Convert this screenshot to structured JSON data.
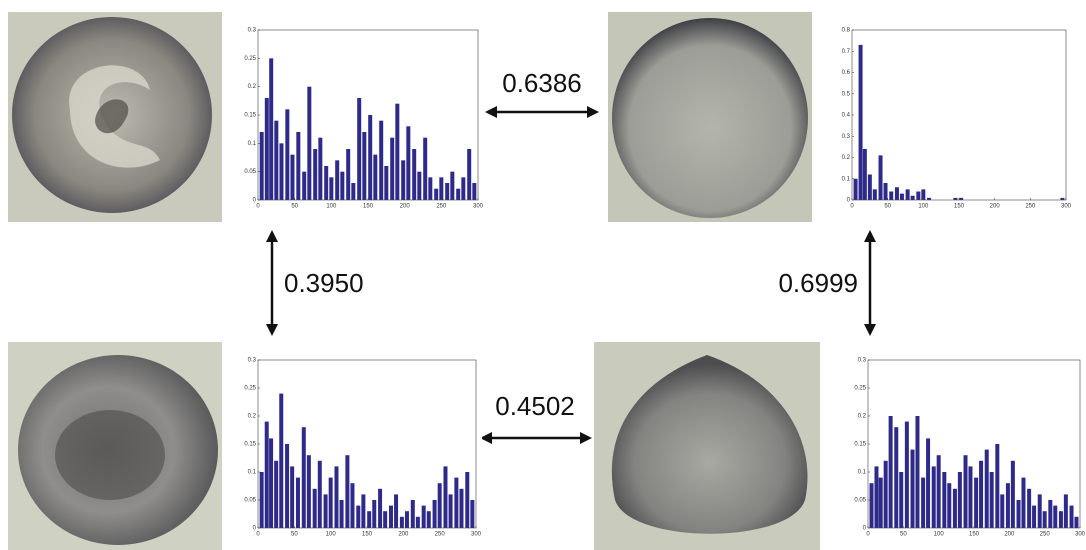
{
  "links": [
    "0.6386",
    "0.3950",
    "0.4502",
    "0.6999"
  ],
  "chart_data": [
    {
      "type": "bar",
      "color": "#2e2a8a",
      "x": [
        5,
        12,
        18,
        25,
        32,
        40,
        47,
        55,
        63,
        70,
        78,
        85,
        93,
        100,
        108,
        115,
        123,
        130,
        138,
        145,
        153,
        160,
        168,
        175,
        183,
        190,
        198,
        205,
        213,
        220,
        228,
        235,
        243,
        250,
        258,
        265,
        273,
        280,
        288,
        295
      ],
      "values": [
        0.12,
        0.18,
        0.25,
        0.14,
        0.1,
        0.16,
        0.08,
        0.12,
        0.05,
        0.2,
        0.09,
        0.11,
        0.06,
        0.04,
        0.07,
        0.05,
        0.09,
        0.03,
        0.18,
        0.12,
        0.15,
        0.08,
        0.14,
        0.06,
        0.11,
        0.17,
        0.07,
        0.13,
        0.09,
        0.05,
        0.11,
        0.04,
        0.02,
        0.04,
        0.03,
        0.05,
        0.02,
        0.04,
        0.09,
        0.03
      ],
      "xlim": [
        0,
        300
      ],
      "xticks": [
        0,
        50,
        100,
        150,
        200,
        250,
        300
      ],
      "ylim": [
        0,
        0.3
      ],
      "yticks": [
        0,
        0.05,
        0.1,
        0.15,
        0.2,
        0.25,
        0.3
      ]
    },
    {
      "type": "bar",
      "color": "#2e2a8a",
      "x": [
        5,
        12,
        18,
        25,
        32,
        40,
        47,
        55,
        63,
        70,
        78,
        85,
        93,
        100,
        108,
        115,
        123,
        130,
        138,
        145,
        153,
        160,
        168,
        175,
        183,
        190,
        198,
        205,
        213,
        220,
        228,
        235,
        243,
        250,
        258,
        265,
        273,
        280,
        288,
        295
      ],
      "values": [
        0.1,
        0.73,
        0.24,
        0.12,
        0.05,
        0.21,
        0.08,
        0.04,
        0.06,
        0.03,
        0.05,
        0.02,
        0.04,
        0.05,
        0.01,
        0,
        0,
        0,
        0,
        0.01,
        0.01,
        0,
        0,
        0,
        0,
        0,
        0,
        0,
        0,
        0,
        0,
        0,
        0,
        0,
        0,
        0,
        0,
        0,
        0,
        0.01
      ],
      "xlim": [
        0,
        300
      ],
      "xticks": [
        0,
        50,
        100,
        150,
        200,
        250,
        300
      ],
      "ylim": [
        0,
        0.8
      ],
      "yticks": [
        0,
        0.1,
        0.2,
        0.3,
        0.4,
        0.5,
        0.6,
        0.7,
        0.8
      ]
    },
    {
      "type": "bar",
      "color": "#2e2a8a",
      "x": [
        5,
        12,
        18,
        25,
        32,
        40,
        47,
        55,
        63,
        70,
        78,
        85,
        93,
        100,
        108,
        115,
        123,
        130,
        138,
        145,
        153,
        160,
        168,
        175,
        183,
        190,
        198,
        205,
        213,
        220,
        228,
        235,
        243,
        250,
        258,
        265,
        273,
        280,
        288,
        295
      ],
      "values": [
        0.1,
        0.19,
        0.16,
        0.12,
        0.24,
        0.15,
        0.11,
        0.09,
        0.18,
        0.13,
        0.07,
        0.12,
        0.06,
        0.09,
        0.11,
        0.05,
        0.13,
        0.08,
        0.04,
        0.06,
        0.03,
        0.05,
        0.07,
        0.03,
        0.04,
        0.06,
        0.02,
        0.03,
        0.05,
        0.02,
        0.04,
        0.03,
        0.05,
        0.08,
        0.11,
        0.06,
        0.09,
        0.07,
        0.1,
        0.05
      ],
      "xlim": [
        0,
        300
      ],
      "xticks": [
        0,
        50,
        100,
        150,
        200,
        250,
        300
      ],
      "ylim": [
        0,
        0.3
      ],
      "yticks": [
        0,
        0.05,
        0.1,
        0.15,
        0.2,
        0.25,
        0.3
      ]
    },
    {
      "type": "bar",
      "color": "#2e2a8a",
      "x": [
        5,
        12,
        18,
        25,
        32,
        40,
        47,
        55,
        63,
        70,
        78,
        85,
        93,
        100,
        108,
        115,
        123,
        130,
        138,
        145,
        153,
        160,
        168,
        175,
        183,
        190,
        198,
        205,
        213,
        220,
        228,
        235,
        243,
        250,
        258,
        265,
        273,
        280,
        288,
        295
      ],
      "values": [
        0.08,
        0.11,
        0.09,
        0.12,
        0.2,
        0.18,
        0.1,
        0.19,
        0.14,
        0.2,
        0.09,
        0.16,
        0.11,
        0.13,
        0.1,
        0.08,
        0.07,
        0.1,
        0.13,
        0.11,
        0.09,
        0.12,
        0.14,
        0.1,
        0.15,
        0.06,
        0.08,
        0.12,
        0.05,
        0.09,
        0.07,
        0.04,
        0.06,
        0.03,
        0.05,
        0.04,
        0.03,
        0.06,
        0.04,
        0.02
      ],
      "xlim": [
        0,
        300
      ],
      "xticks": [
        0,
        50,
        100,
        150,
        200,
        250,
        300
      ],
      "ylim": [
        0,
        0.3
      ],
      "yticks": [
        0,
        0.05,
        0.1,
        0.15,
        0.2,
        0.25,
        0.3
      ]
    }
  ]
}
